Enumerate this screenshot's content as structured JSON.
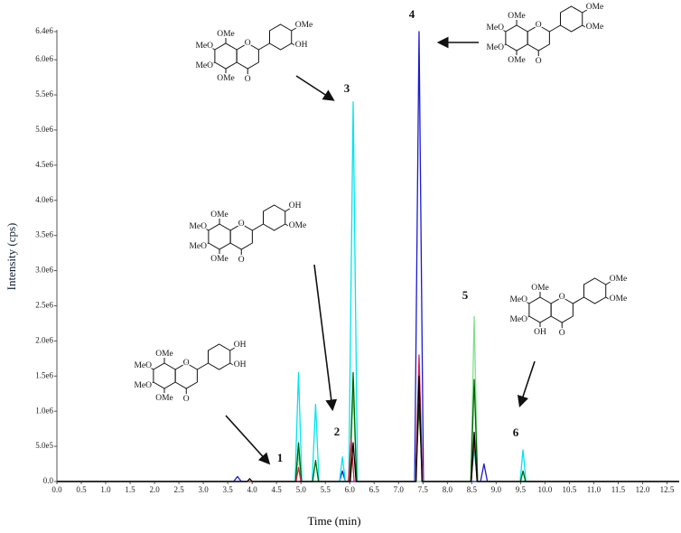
{
  "chart_data": {
    "type": "line",
    "xlabel": "Time (min)",
    "ylabel": "Intensity (cps)",
    "xlim": [
      0,
      12.75
    ],
    "ylim": [
      0,
      6400000
    ],
    "xticks": [
      {
        "value": 0,
        "label": "0.0"
      },
      0.5,
      {
        "value": 1,
        "label": "1.0"
      },
      1.5,
      {
        "value": 2,
        "label": "2.0"
      },
      2.5,
      {
        "value": 3,
        "label": "3.0"
      },
      3.5,
      {
        "value": 4,
        "label": "4.0"
      },
      4.5,
      {
        "value": 5,
        "label": "5.0"
      },
      5.5,
      {
        "value": 6,
        "label": "6.0"
      },
      6.5,
      {
        "value": 7,
        "label": "7.0"
      },
      7.5,
      {
        "value": 8,
        "label": "8.0"
      },
      8.5,
      {
        "value": 9,
        "label": "9.0"
      },
      9.5,
      {
        "value": 10,
        "label": "10.0"
      },
      10.5,
      {
        "value": 11,
        "label": "11.0"
      },
      11.5,
      {
        "value": 12,
        "label": "12.0"
      },
      12.5
    ],
    "yticks": [
      {
        "value": 0,
        "label": "0.0"
      },
      {
        "value": 500000,
        "label": "5.0e5"
      },
      {
        "value": 1000000,
        "label": "1.0e6"
      },
      {
        "value": 1500000,
        "label": "1.5e6"
      },
      {
        "value": 2000000,
        "label": "2.0e6"
      },
      {
        "value": 2500000,
        "label": "2.5e6"
      },
      {
        "value": 3000000,
        "label": "3.0e6"
      },
      {
        "value": 3500000,
        "label": "3.5e6"
      },
      {
        "value": 4000000,
        "label": "4.0e6"
      },
      {
        "value": 4500000,
        "label": "4.5e6"
      },
      {
        "value": 5000000,
        "label": "5.0e6"
      },
      {
        "value": 5500000,
        "label": "5.5e6"
      },
      {
        "value": 6000000,
        "label": "6.0e6"
      },
      {
        "value": 6400000,
        "label": "6.4e6"
      }
    ],
    "series": [
      {
        "color": "#1a1acd",
        "x": [
          0,
          3.62,
          3.7,
          3.78,
          5.79,
          5.85,
          5.91,
          7.33,
          7.42,
          7.51,
          8.68,
          8.75,
          8.82,
          12.75
        ],
        "values": [
          0,
          0,
          70000,
          0,
          0,
          150000,
          0,
          0,
          6400000,
          0,
          0,
          250000,
          0,
          0
        ]
      },
      {
        "color": "#00e5ee",
        "x": [
          0,
          4.88,
          4.95,
          5.02,
          5.23,
          5.3,
          5.37,
          5.79,
          5.85,
          5.91,
          5.98,
          6.07,
          6.16,
          7.34,
          7.42,
          7.5,
          8.48,
          8.55,
          8.62,
          9.49,
          9.55,
          9.61,
          12.75
        ],
        "values": [
          0,
          0,
          1550000,
          0,
          0,
          1100000,
          0,
          0,
          350000,
          0,
          0,
          5400000,
          0,
          0,
          1200000,
          0,
          0,
          450000,
          0,
          0,
          450000,
          0,
          0
        ]
      },
      {
        "color": "#7fe08a",
        "x": [
          0,
          4.89,
          4.95,
          5.01,
          6.0,
          6.07,
          6.14,
          8.48,
          8.55,
          8.62,
          12.75
        ],
        "values": [
          0,
          0,
          400000,
          0,
          0,
          1300000,
          0,
          0,
          2350000,
          0,
          0
        ]
      },
      {
        "color": "#006400",
        "x": [
          0,
          4.89,
          4.95,
          5.01,
          5.24,
          5.3,
          5.36,
          6.0,
          6.07,
          6.14,
          7.35,
          7.42,
          7.49,
          8.48,
          8.55,
          8.62,
          9.5,
          9.55,
          9.6,
          12.75
        ],
        "values": [
          0,
          0,
          550000,
          0,
          0,
          300000,
          0,
          0,
          1550000,
          0,
          0,
          1100000,
          0,
          0,
          1450000,
          0,
          0,
          150000,
          0,
          0
        ]
      },
      {
        "color": "#e0204a",
        "x": [
          0,
          4.9,
          4.95,
          5.0,
          5.97,
          6.03,
          6.09,
          7.35,
          7.42,
          7.49,
          8.49,
          8.55,
          8.61,
          12.75
        ],
        "values": [
          0,
          0,
          200000,
          0,
          0,
          600000,
          0,
          0,
          1800000,
          0,
          0,
          600000,
          0,
          0
        ]
      },
      {
        "color": "#000000",
        "x": [
          0,
          3.9,
          3.95,
          4.0,
          6.01,
          6.07,
          6.13,
          7.36,
          7.42,
          7.48,
          8.49,
          8.55,
          8.61,
          12.75
        ],
        "values": [
          0,
          0,
          40000,
          0,
          0,
          550000,
          0,
          0,
          1500000,
          0,
          0,
          700000,
          0,
          0
        ]
      }
    ],
    "annotations": [
      "1",
      "2",
      "3",
      "4",
      "5",
      "6"
    ]
  },
  "structures": [
    {
      "labels": [
        "OMe",
        "MeO",
        "MeO",
        "OMe",
        "O",
        "O",
        "OMe",
        "OH"
      ]
    },
    {
      "labels": [
        "OMe",
        "MeO",
        "MeO",
        "OMe",
        "O",
        "O",
        "OMe",
        "OMe"
      ]
    },
    {
      "labels": [
        "OMe",
        "MeO",
        "MeO",
        "OMe",
        "O",
        "O",
        "OH",
        "OMe"
      ]
    },
    {
      "labels": [
        "OMe",
        "MeO",
        "MeO",
        "OH",
        "O",
        "O",
        "OMe",
        "OMe"
      ]
    },
    {
      "labels": [
        "OMe",
        "MeO",
        "MeO",
        "OMe",
        "O",
        "O",
        "OH",
        "OH"
      ]
    }
  ]
}
